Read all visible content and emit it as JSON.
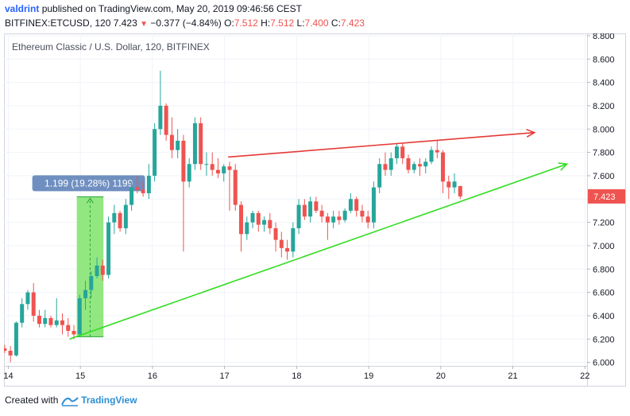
{
  "header": {
    "author": "valdrint",
    "published_text": "published on TradingView.com, May 20, 2019 09:46:56 CEST",
    "symbol": "BITFINEX:ETCUSD",
    "interval": "120",
    "last": "7.423",
    "change": "−0.377 (−4.84%)",
    "o_label": "O:",
    "o_value": "7.512",
    "h_label": "H:",
    "h_value": "7.512",
    "l_label": "L:",
    "l_value": "7.400",
    "c_label": "C:",
    "c_value": "7.423"
  },
  "footer": {
    "created_with": "Created with",
    "brand": "TradingView"
  },
  "colors": {
    "up": "#26a69a",
    "down": "#ef5350",
    "resistance": "#e53935",
    "support": "#33dd22",
    "measure_fill": "#7fe36b",
    "measure_label": "#6f8fc0"
  },
  "chart_data": {
    "type": "candlestick",
    "title": "Ethereum Classic / U.S. Dollar, 120, BITFINEX",
    "y_axis": {
      "min": 5.97,
      "max": 8.82,
      "ticks": [
        "6.000",
        "6.200",
        "6.400",
        "6.600",
        "6.800",
        "7.000",
        "7.200",
        "7.400",
        "7.600",
        "7.800",
        "8.000",
        "8.200",
        "8.400",
        "8.600",
        "8.800"
      ]
    },
    "x_axis": {
      "min": 13.94,
      "max": 22.03,
      "ticks": [
        {
          "x": 14,
          "label": "14"
        },
        {
          "x": 15,
          "label": "15"
        },
        {
          "x": 16,
          "label": "16"
        },
        {
          "x": 17,
          "label": "17"
        },
        {
          "x": 18,
          "label": "18"
        },
        {
          "x": 19,
          "label": "19"
        },
        {
          "x": 20,
          "label": "20"
        },
        {
          "x": 21,
          "label": "21"
        },
        {
          "x": 22,
          "label": "22"
        }
      ]
    },
    "price_tag": "7.423",
    "measure_label": "1.199 (19.28%) 1199",
    "measure_range": {
      "x_start": 14.95,
      "x_end": 15.32,
      "y_start": 6.22,
      "y_end": 7.42
    },
    "resistance_line": {
      "x1": 17.05,
      "y1": 7.76,
      "x2": 21.3,
      "y2": 7.97
    },
    "support_line": {
      "x1": 14.85,
      "y1": 6.2,
      "x2": 21.75,
      "y2": 7.7
    },
    "candles": [
      {
        "x": 13.95,
        "o": 6.12,
        "h": 6.15,
        "l": 6.08,
        "c": 6.1
      },
      {
        "x": 14.03,
        "o": 6.1,
        "h": 6.14,
        "l": 6.0,
        "c": 6.06
      },
      {
        "x": 14.11,
        "o": 6.06,
        "h": 6.35,
        "l": 6.05,
        "c": 6.34
      },
      {
        "x": 14.19,
        "o": 6.34,
        "h": 6.55,
        "l": 6.3,
        "c": 6.5
      },
      {
        "x": 14.27,
        "o": 6.5,
        "h": 6.62,
        "l": 6.45,
        "c": 6.6
      },
      {
        "x": 14.35,
        "o": 6.6,
        "h": 6.68,
        "l": 6.35,
        "c": 6.4
      },
      {
        "x": 14.43,
        "o": 6.4,
        "h": 6.45,
        "l": 6.3,
        "c": 6.33
      },
      {
        "x": 14.51,
        "o": 6.33,
        "h": 6.45,
        "l": 6.3,
        "c": 6.38
      },
      {
        "x": 14.59,
        "o": 6.38,
        "h": 6.4,
        "l": 6.3,
        "c": 6.32
      },
      {
        "x": 14.67,
        "o": 6.32,
        "h": 6.55,
        "l": 6.3,
        "c": 6.36
      },
      {
        "x": 14.75,
        "o": 6.36,
        "h": 6.42,
        "l": 6.24,
        "c": 6.32
      },
      {
        "x": 14.83,
        "o": 6.32,
        "h": 6.38,
        "l": 6.22,
        "c": 6.27
      },
      {
        "x": 14.91,
        "o": 6.27,
        "h": 6.32,
        "l": 6.2,
        "c": 6.24
      },
      {
        "x": 14.99,
        "o": 6.24,
        "h": 6.58,
        "l": 6.22,
        "c": 6.55
      },
      {
        "x": 15.07,
        "o": 6.55,
        "h": 6.7,
        "l": 6.45,
        "c": 6.62
      },
      {
        "x": 15.15,
        "o": 6.62,
        "h": 6.78,
        "l": 6.55,
        "c": 6.74
      },
      {
        "x": 15.23,
        "o": 6.74,
        "h": 6.9,
        "l": 6.72,
        "c": 6.83
      },
      {
        "x": 15.31,
        "o": 6.83,
        "h": 6.88,
        "l": 6.7,
        "c": 6.75
      },
      {
        "x": 15.39,
        "o": 6.75,
        "h": 7.25,
        "l": 6.72,
        "c": 7.2
      },
      {
        "x": 15.47,
        "o": 7.2,
        "h": 7.35,
        "l": 7.1,
        "c": 7.28
      },
      {
        "x": 15.55,
        "o": 7.28,
        "h": 7.3,
        "l": 7.12,
        "c": 7.15
      },
      {
        "x": 15.63,
        "o": 7.15,
        "h": 7.4,
        "l": 7.1,
        "c": 7.35
      },
      {
        "x": 15.71,
        "o": 7.35,
        "h": 7.55,
        "l": 7.3,
        "c": 7.5
      },
      {
        "x": 15.79,
        "o": 7.5,
        "h": 7.6,
        "l": 7.45,
        "c": 7.48
      },
      {
        "x": 15.87,
        "o": 7.48,
        "h": 7.55,
        "l": 7.42,
        "c": 7.45
      },
      {
        "x": 15.95,
        "o": 7.45,
        "h": 7.7,
        "l": 7.4,
        "c": 7.6
      },
      {
        "x": 16.03,
        "o": 7.6,
        "h": 8.05,
        "l": 7.55,
        "c": 8.0
      },
      {
        "x": 16.11,
        "o": 8.0,
        "h": 8.5,
        "l": 7.95,
        "c": 8.2
      },
      {
        "x": 16.19,
        "o": 8.2,
        "h": 8.22,
        "l": 7.9,
        "c": 7.95
      },
      {
        "x": 16.27,
        "o": 7.95,
        "h": 8.1,
        "l": 7.75,
        "c": 7.82
      },
      {
        "x": 16.35,
        "o": 7.82,
        "h": 8.0,
        "l": 7.75,
        "c": 7.9
      },
      {
        "x": 16.43,
        "o": 7.9,
        "h": 7.95,
        "l": 6.95,
        "c": 7.55
      },
      {
        "x": 16.51,
        "o": 7.55,
        "h": 7.75,
        "l": 7.5,
        "c": 7.7
      },
      {
        "x": 16.59,
        "o": 7.7,
        "h": 8.1,
        "l": 7.65,
        "c": 8.05
      },
      {
        "x": 16.67,
        "o": 8.05,
        "h": 8.1,
        "l": 7.65,
        "c": 7.7
      },
      {
        "x": 16.75,
        "o": 7.7,
        "h": 7.8,
        "l": 7.6,
        "c": 7.7
      },
      {
        "x": 16.83,
        "o": 7.7,
        "h": 7.8,
        "l": 7.6,
        "c": 7.65
      },
      {
        "x": 16.91,
        "o": 7.65,
        "h": 7.75,
        "l": 7.58,
        "c": 7.62
      },
      {
        "x": 16.99,
        "o": 7.62,
        "h": 7.7,
        "l": 7.55,
        "c": 7.68
      },
      {
        "x": 17.07,
        "o": 7.68,
        "h": 7.72,
        "l": 7.3,
        "c": 7.65
      },
      {
        "x": 17.15,
        "o": 7.65,
        "h": 7.7,
        "l": 7.3,
        "c": 7.35
      },
      {
        "x": 17.23,
        "o": 7.35,
        "h": 7.38,
        "l": 6.95,
        "c": 7.1
      },
      {
        "x": 17.31,
        "o": 7.1,
        "h": 7.25,
        "l": 7.05,
        "c": 7.2
      },
      {
        "x": 17.39,
        "o": 7.2,
        "h": 7.3,
        "l": 7.15,
        "c": 7.28
      },
      {
        "x": 17.47,
        "o": 7.28,
        "h": 7.3,
        "l": 7.12,
        "c": 7.18
      },
      {
        "x": 17.55,
        "o": 7.18,
        "h": 7.25,
        "l": 7.12,
        "c": 7.22
      },
      {
        "x": 17.63,
        "o": 7.22,
        "h": 7.28,
        "l": 7.1,
        "c": 7.15
      },
      {
        "x": 17.71,
        "o": 7.15,
        "h": 7.2,
        "l": 6.95,
        "c": 7.05
      },
      {
        "x": 17.79,
        "o": 7.05,
        "h": 7.12,
        "l": 6.9,
        "c": 6.98
      },
      {
        "x": 17.87,
        "o": 6.98,
        "h": 7.05,
        "l": 6.88,
        "c": 6.95
      },
      {
        "x": 17.95,
        "o": 6.95,
        "h": 7.2,
        "l": 6.9,
        "c": 7.15
      },
      {
        "x": 18.03,
        "o": 7.15,
        "h": 7.4,
        "l": 7.1,
        "c": 7.35
      },
      {
        "x": 18.11,
        "o": 7.35,
        "h": 7.4,
        "l": 7.22,
        "c": 7.25
      },
      {
        "x": 18.19,
        "o": 7.25,
        "h": 7.42,
        "l": 7.2,
        "c": 7.38
      },
      {
        "x": 18.27,
        "o": 7.38,
        "h": 7.42,
        "l": 7.28,
        "c": 7.3
      },
      {
        "x": 18.35,
        "o": 7.3,
        "h": 7.35,
        "l": 7.2,
        "c": 7.25
      },
      {
        "x": 18.43,
        "o": 7.25,
        "h": 7.28,
        "l": 7.05,
        "c": 7.2
      },
      {
        "x": 18.51,
        "o": 7.2,
        "h": 7.3,
        "l": 7.15,
        "c": 7.25
      },
      {
        "x": 18.59,
        "o": 7.25,
        "h": 7.3,
        "l": 7.18,
        "c": 7.22
      },
      {
        "x": 18.67,
        "o": 7.22,
        "h": 7.32,
        "l": 7.2,
        "c": 7.3
      },
      {
        "x": 18.75,
        "o": 7.3,
        "h": 7.45,
        "l": 7.28,
        "c": 7.4
      },
      {
        "x": 18.83,
        "o": 7.4,
        "h": 7.42,
        "l": 7.25,
        "c": 7.3
      },
      {
        "x": 18.91,
        "o": 7.3,
        "h": 7.35,
        "l": 7.2,
        "c": 7.25
      },
      {
        "x": 18.99,
        "o": 7.25,
        "h": 7.3,
        "l": 7.15,
        "c": 7.2
      },
      {
        "x": 19.07,
        "o": 7.2,
        "h": 7.55,
        "l": 7.15,
        "c": 7.5
      },
      {
        "x": 19.15,
        "o": 7.5,
        "h": 7.75,
        "l": 7.45,
        "c": 7.7
      },
      {
        "x": 19.23,
        "o": 7.7,
        "h": 7.8,
        "l": 7.6,
        "c": 7.65
      },
      {
        "x": 19.31,
        "o": 7.65,
        "h": 7.8,
        "l": 7.6,
        "c": 7.75
      },
      {
        "x": 19.39,
        "o": 7.75,
        "h": 7.88,
        "l": 7.7,
        "c": 7.85
      },
      {
        "x": 19.47,
        "o": 7.85,
        "h": 7.88,
        "l": 7.7,
        "c": 7.75
      },
      {
        "x": 19.55,
        "o": 7.75,
        "h": 7.78,
        "l": 7.62,
        "c": 7.65
      },
      {
        "x": 19.63,
        "o": 7.65,
        "h": 7.72,
        "l": 7.62,
        "c": 7.7
      },
      {
        "x": 19.71,
        "o": 7.7,
        "h": 7.75,
        "l": 7.6,
        "c": 7.68
      },
      {
        "x": 19.79,
        "o": 7.68,
        "h": 7.75,
        "l": 7.62,
        "c": 7.72
      },
      {
        "x": 19.87,
        "o": 7.72,
        "h": 7.85,
        "l": 7.7,
        "c": 7.82
      },
      {
        "x": 19.95,
        "o": 7.82,
        "h": 7.9,
        "l": 7.75,
        "c": 7.8
      },
      {
        "x": 20.03,
        "o": 7.8,
        "h": 7.82,
        "l": 7.45,
        "c": 7.55
      },
      {
        "x": 20.11,
        "o": 7.55,
        "h": 7.6,
        "l": 7.4,
        "c": 7.5
      },
      {
        "x": 20.19,
        "o": 7.5,
        "h": 7.62,
        "l": 7.45,
        "c": 7.55
      },
      {
        "x": 20.27,
        "o": 7.512,
        "h": 7.512,
        "l": 7.4,
        "c": 7.423
      }
    ]
  }
}
